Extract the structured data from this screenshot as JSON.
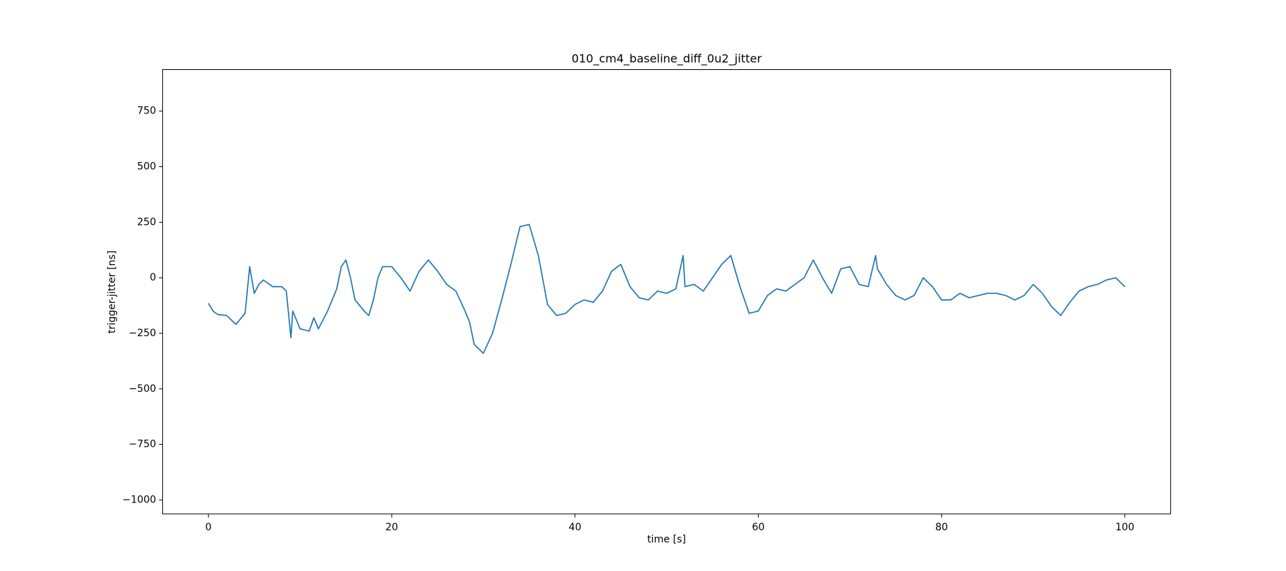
{
  "chart_data": {
    "type": "line",
    "title": "010_cm4_baseline_diff_0u2_jitter",
    "xlabel": "time [s]",
    "ylabel": "trigger-jitter [ns]",
    "xlim": [
      -5,
      105
    ],
    "ylim": [
      -1063,
      937
    ],
    "xticks": [
      0,
      20,
      40,
      60,
      80,
      100
    ],
    "yticks": [
      {
        "value": -1000,
        "label": "−1000"
      },
      {
        "value": -750,
        "label": "−750"
      },
      {
        "value": -500,
        "label": "−500"
      },
      {
        "value": -250,
        "label": "−250"
      },
      0,
      250,
      500,
      750
    ],
    "grid": false,
    "x": [
      0,
      0.5,
      1,
      2,
      3,
      4,
      4.5,
      5,
      5.5,
      6,
      7,
      8,
      8.5,
      9,
      9.2,
      10,
      11,
      11.5,
      12,
      13,
      14,
      14.5,
      15,
      15.5,
      16,
      17,
      17.5,
      18,
      18.5,
      19,
      20,
      21,
      22,
      23,
      24,
      25,
      26,
      27,
      28,
      28.5,
      29,
      30,
      31,
      32,
      33,
      34,
      35,
      36,
      37,
      38,
      39,
      40,
      41,
      42,
      43,
      44,
      45,
      46,
      47,
      48,
      49,
      50,
      51,
      51.8,
      52,
      53,
      54,
      55,
      56,
      57,
      58,
      59,
      60,
      61,
      62,
      63,
      64,
      65,
      66,
      67,
      68,
      69,
      70,
      71,
      72,
      72.8,
      73,
      74,
      75,
      76,
      77,
      78,
      79,
      80,
      81,
      82,
      83,
      84,
      85,
      86,
      87,
      88,
      89,
      90,
      91,
      92,
      93,
      94,
      95,
      96,
      97,
      98,
      99,
      100
    ],
    "series": [
      {
        "color": "#1f77b4",
        "values": [
          -115,
          -150,
          -165,
          -170,
          -210,
          -160,
          50,
          -70,
          -30,
          -10,
          -40,
          -40,
          -60,
          -270,
          -150,
          -230,
          -240,
          -180,
          -230,
          -150,
          -50,
          50,
          80,
          0,
          -100,
          -150,
          -170,
          -100,
          0,
          50,
          50,
          0,
          -60,
          30,
          80,
          30,
          -30,
          -60,
          -150,
          -200,
          -300,
          -340,
          -250,
          -100,
          60,
          230,
          240,
          100,
          -120,
          -170,
          -160,
          -120,
          -100,
          -110,
          -60,
          30,
          60,
          -40,
          -90,
          -100,
          -60,
          -70,
          -50,
          100,
          -40,
          -30,
          -60,
          0,
          60,
          100,
          -40,
          -160,
          -150,
          -80,
          -50,
          -60,
          -30,
          0,
          80,
          0,
          -70,
          40,
          50,
          -30,
          -40,
          100,
          40,
          -30,
          -80,
          -100,
          -80,
          0,
          -40,
          -100,
          -100,
          -70,
          -90,
          -80,
          -70,
          -70,
          -80,
          -100,
          -80,
          -30,
          -70,
          -130,
          -170,
          -110,
          -60,
          -40,
          -30,
          -10,
          0,
          -40
        ]
      }
    ]
  }
}
